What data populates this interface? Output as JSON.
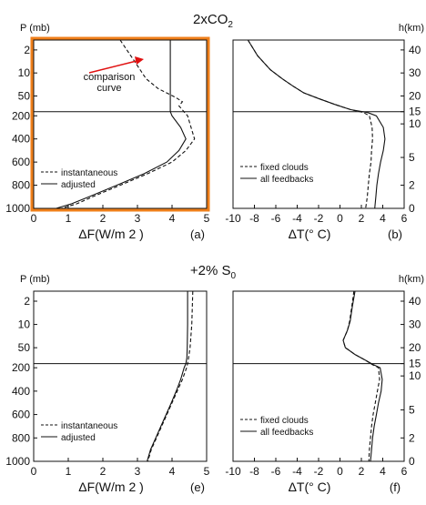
{
  "colors": {
    "highlight_box": "#ef7f1a",
    "arrow": "#e01010",
    "annotation_text": "#e01010"
  },
  "chart_data": [
    {
      "type": "line",
      "panel_label": "(a)",
      "section_title": "2xCO2",
      "xlabel": "ΔF(W/m 2 )",
      "ylabel": "P (mb)",
      "xlim": [
        0,
        5
      ],
      "x_ticks": [
        "0",
        "1",
        "2",
        "3",
        "4",
        "5"
      ],
      "y_ticks": [
        "2",
        "10",
        "50",
        "200",
        "400",
        "600",
        "800",
        "1000"
      ],
      "tropopause_p": 150,
      "legend": {
        "position": "bottom-left",
        "entries": [
          {
            "name": "instantaneous",
            "style": "dashed"
          },
          {
            "name": "adjusted",
            "style": "solid"
          }
        ]
      },
      "annotation": "comparison\ncurve",
      "highlighted": true,
      "series": [
        {
          "name": "instantaneous",
          "style": "dashed",
          "p": [
            1,
            5,
            15,
            30,
            55,
            75,
            100,
            200,
            300,
            400,
            500,
            600,
            700,
            800,
            900,
            960,
            1000
          ],
          "x": [
            2.5,
            2.95,
            3.25,
            3.6,
            4.1,
            4.3,
            4.2,
            4.45,
            4.55,
            4.65,
            4.4,
            4.0,
            3.3,
            2.5,
            1.7,
            1.25,
            0.8
          ]
        },
        {
          "name": "adjusted",
          "style": "solid",
          "p": [
            1,
            10,
            50,
            100,
            150,
            200,
            300,
            400,
            500,
            600,
            700,
            800,
            900,
            960,
            1000
          ],
          "x": [
            3.95,
            3.95,
            3.95,
            3.95,
            3.95,
            4.0,
            4.25,
            4.4,
            4.2,
            3.85,
            3.2,
            2.4,
            1.6,
            1.1,
            0.65
          ]
        }
      ]
    },
    {
      "type": "line",
      "panel_label": "(b)",
      "xlabel": "ΔT(° C)",
      "right_axis_label": "h(km)",
      "xlim": [
        -10,
        6
      ],
      "x_ticks": [
        "-10",
        "-8",
        "-6",
        "-4",
        "-2",
        "0",
        "2",
        "4",
        "6"
      ],
      "h_ticks": [
        "40",
        "30",
        "20",
        "15",
        "10",
        "5",
        "2",
        "0"
      ],
      "tropopause_p": 150,
      "legend": {
        "position": "bottom-left",
        "entries": [
          {
            "name": "fixed clouds",
            "style": "dashed"
          },
          {
            "name": "all feedbacks",
            "style": "solid"
          }
        ]
      },
      "series": [
        {
          "name": "fixed clouds",
          "style": "dashed",
          "p": [
            1,
            3,
            8,
            15,
            25,
            40,
            60,
            90,
            130,
            160,
            200,
            300,
            400,
            500,
            600,
            700,
            800,
            900,
            1000
          ],
          "x": [
            -8.6,
            -7.7,
            -6.5,
            -5.4,
            -4.4,
            -3.4,
            -2.0,
            -0.5,
            1.0,
            2.2,
            2.75,
            3.0,
            3.05,
            2.95,
            2.9,
            2.75,
            2.65,
            2.55,
            2.4
          ]
        },
        {
          "name": "all feedbacks",
          "style": "solid",
          "p": [
            1,
            3,
            8,
            15,
            25,
            40,
            60,
            90,
            130,
            160,
            200,
            300,
            400,
            500,
            600,
            700,
            800,
            900,
            1000
          ],
          "x": [
            -8.6,
            -7.7,
            -6.5,
            -5.4,
            -4.4,
            -3.4,
            -2.0,
            -0.5,
            1.0,
            2.6,
            3.4,
            4.05,
            4.2,
            4.05,
            3.8,
            3.6,
            3.45,
            3.35,
            3.25
          ]
        }
      ]
    },
    {
      "type": "line",
      "panel_label": "(e)",
      "section_title": "+2% S0",
      "xlabel": "ΔF(W/m 2 )",
      "ylabel": "P (mb)",
      "xlim": [
        0,
        5
      ],
      "x_ticks": [
        "0",
        "1",
        "2",
        "3",
        "4",
        "5"
      ],
      "y_ticks": [
        "2",
        "10",
        "50",
        "200",
        "400",
        "600",
        "800",
        "1000"
      ],
      "tropopause_p": 150,
      "legend": {
        "position": "bottom-left",
        "entries": [
          {
            "name": "instantaneous",
            "style": "dashed"
          },
          {
            "name": "adjusted",
            "style": "solid"
          }
        ]
      },
      "series": [
        {
          "name": "instantaneous",
          "style": "dashed",
          "p": [
            1,
            10,
            50,
            100,
            150,
            200,
            300,
            400,
            500,
            600,
            700,
            800,
            900,
            1000
          ],
          "x": [
            4.6,
            4.57,
            4.52,
            4.48,
            4.45,
            4.42,
            4.3,
            4.15,
            4.0,
            3.85,
            3.7,
            3.55,
            3.4,
            3.3
          ]
        },
        {
          "name": "adjusted",
          "style": "solid",
          "p": [
            1,
            10,
            50,
            100,
            150,
            200,
            300,
            400,
            500,
            600,
            700,
            800,
            900,
            1000
          ],
          "x": [
            4.45,
            4.45,
            4.44,
            4.43,
            4.4,
            4.35,
            4.25,
            4.12,
            3.98,
            3.83,
            3.68,
            3.53,
            3.38,
            3.28
          ]
        }
      ]
    },
    {
      "type": "line",
      "panel_label": "(f)",
      "xlabel": "ΔT(° C)",
      "right_axis_label": "h(km)",
      "xlim": [
        -10,
        6
      ],
      "x_ticks": [
        "-10",
        "-8",
        "-6",
        "-4",
        "-2",
        "0",
        "2",
        "4",
        "6"
      ],
      "h_ticks": [
        "40",
        "30",
        "20",
        "15",
        "10",
        "5",
        "2",
        "0"
      ],
      "tropopause_p": 150,
      "legend": {
        "position": "bottom-left",
        "entries": [
          {
            "name": "fixed clouds",
            "style": "dashed"
          },
          {
            "name": "all feedbacks",
            "style": "solid"
          }
        ]
      },
      "series": [
        {
          "name": "fixed clouds",
          "style": "dashed",
          "p": [
            1,
            3,
            8,
            15,
            30,
            50,
            80,
            120,
            160,
            200,
            300,
            400,
            500,
            600,
            700,
            800,
            900,
            1000
          ],
          "x": [
            1.3,
            1.1,
            0.9,
            0.7,
            0.3,
            0.5,
            1.4,
            2.4,
            3.0,
            3.6,
            3.7,
            3.5,
            3.3,
            3.1,
            2.95,
            2.85,
            2.75,
            2.7
          ]
        },
        {
          "name": "all feedbacks",
          "style": "solid",
          "p": [
            1,
            3,
            8,
            15,
            30,
            50,
            80,
            120,
            160,
            200,
            300,
            400,
            500,
            600,
            700,
            800,
            900,
            1000
          ],
          "x": [
            1.4,
            1.15,
            0.95,
            0.7,
            0.3,
            0.5,
            1.4,
            2.4,
            3.1,
            3.75,
            3.95,
            3.85,
            3.6,
            3.4,
            3.2,
            3.05,
            2.95,
            2.85
          ]
        }
      ]
    }
  ]
}
